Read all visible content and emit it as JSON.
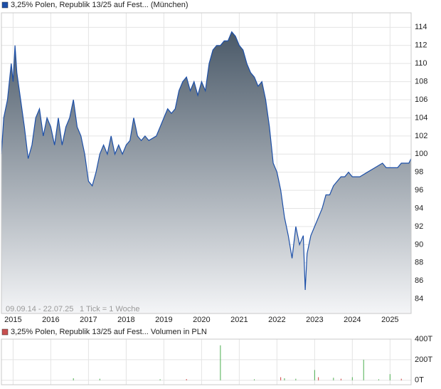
{
  "chart_data": [
    {
      "type": "area",
      "title": "3,25% Polen, Republik 13/25 auf Fest... (München)",
      "period": "09.09.14 - 22.07.25",
      "tick_note": "1 Tick = 1 Woche",
      "x": [
        2014.69,
        2014.75,
        2014.85,
        2014.95,
        2015.0,
        2015.05,
        2015.1,
        2015.2,
        2015.3,
        2015.4,
        2015.5,
        2015.6,
        2015.7,
        2015.8,
        2015.9,
        2016.0,
        2016.1,
        2016.2,
        2016.3,
        2016.4,
        2016.5,
        2016.6,
        2016.7,
        2016.8,
        2016.9,
        2017.0,
        2017.1,
        2017.2,
        2017.3,
        2017.4,
        2017.5,
        2017.6,
        2017.7,
        2017.8,
        2017.9,
        2018.0,
        2018.1,
        2018.2,
        2018.3,
        2018.4,
        2018.5,
        2018.6,
        2018.8,
        2018.9,
        2019.0,
        2019.1,
        2019.2,
        2019.3,
        2019.4,
        2019.5,
        2019.6,
        2019.7,
        2019.8,
        2019.9,
        2020.0,
        2020.1,
        2020.2,
        2020.3,
        2020.4,
        2020.5,
        2020.6,
        2020.7,
        2020.8,
        2020.9,
        2021.0,
        2021.1,
        2021.2,
        2021.3,
        2021.4,
        2021.5,
        2021.6,
        2021.7,
        2021.8,
        2021.9,
        2022.0,
        2022.1,
        2022.2,
        2022.3,
        2022.4,
        2022.5,
        2022.6,
        2022.7,
        2022.75,
        2022.8,
        2022.9,
        2023.0,
        2023.1,
        2023.2,
        2023.3,
        2023.4,
        2023.5,
        2023.6,
        2023.7,
        2023.8,
        2023.9,
        2024.0,
        2024.2,
        2024.4,
        2024.6,
        2024.8,
        2024.9,
        2025.0,
        2025.2,
        2025.3,
        2025.4,
        2025.5,
        2025.56
      ],
      "series": [
        {
          "name": "3,25% Polen, Republik 13/25 auf Fest... (München)",
          "color": "#1c4fa8",
          "values": [
            100,
            104,
            106,
            110,
            108,
            112,
            109,
            106,
            103,
            99.5,
            101,
            104,
            105,
            102,
            104,
            103,
            101,
            104,
            101,
            103,
            104,
            106,
            103,
            102,
            100,
            97,
            96.5,
            98,
            100,
            101,
            100,
            102,
            100,
            101,
            100,
            101,
            101.5,
            104,
            102,
            101.5,
            102,
            101.5,
            102,
            103,
            104,
            105,
            104.5,
            105,
            107,
            108,
            108.5,
            107,
            108,
            106.5,
            108,
            107,
            110,
            111.5,
            112,
            112,
            112.5,
            112.5,
            113.5,
            113,
            112,
            111.5,
            110,
            109,
            108.5,
            107.5,
            108,
            106,
            103,
            99,
            98,
            96,
            93,
            91,
            88.5,
            92,
            90,
            91,
            85,
            89,
            91,
            92,
            93,
            94,
            95.5,
            95.5,
            96.5,
            97,
            97.5,
            97.5,
            98,
            97.5,
            97.5,
            98,
            98.5,
            99,
            98.5,
            98.5,
            98.5,
            99,
            99,
            99,
            99.5
          ]
        }
      ],
      "xlim": [
        2014.69,
        2025.56
      ],
      "xticks": [
        2015,
        2016,
        2017,
        2018,
        2019,
        2020,
        2021,
        2022,
        2023,
        2024,
        2025
      ],
      "ylim": [
        82.4,
        115.6
      ],
      "yticks": [
        84,
        86,
        88,
        90,
        92,
        94,
        96,
        98,
        100,
        102,
        104,
        106,
        108,
        110,
        112,
        114
      ],
      "grid": true
    },
    {
      "type": "bar",
      "title": "3,25% Polen, Republik 13/25 auf Fest... Volumen in PLN",
      "x": [
        2016.6,
        2017.3,
        2018.9,
        2019.6,
        2020.5,
        2021.4,
        2022.1,
        2022.2,
        2022.5,
        2023.0,
        2023.1,
        2023.5,
        2023.7,
        2024.0,
        2024.3,
        2024.7,
        2025.0,
        2025.3
      ],
      "series": [
        {
          "name": "3,25% Polen, Republik 13/25 auf Fest... Volumen in PLN",
          "color": "#4caf50",
          "values": [
            20,
            15,
            10,
            12,
            340,
            10,
            30,
            20,
            15,
            100,
            30,
            25,
            15,
            30,
            200,
            10,
            60,
            15
          ],
          "colors": [
            "#4caf50",
            "#4caf50",
            "#4caf50",
            "#d04040",
            "#4caf50",
            "#4caf50",
            "#d04040",
            "#4caf50",
            "#4caf50",
            "#4caf50",
            "#d04040",
            "#4caf50",
            "#d04040",
            "#4caf50",
            "#4caf50",
            "#4caf50",
            "#4caf50",
            "#d04040"
          ]
        }
      ],
      "legend_color": "#c85050",
      "xlim": [
        2014.69,
        2025.56
      ],
      "xticks": [
        2015,
        2016,
        2017,
        2018,
        2019,
        2020,
        2021,
        2022,
        2023,
        2024,
        2025
      ],
      "ylim": [
        -43,
        400
      ],
      "yticks": [
        {
          "value": 0,
          "label": "0T"
        },
        {
          "value": 200,
          "label": "200T"
        },
        {
          "value": 400,
          "label": "400T"
        }
      ],
      "grid": true
    }
  ]
}
